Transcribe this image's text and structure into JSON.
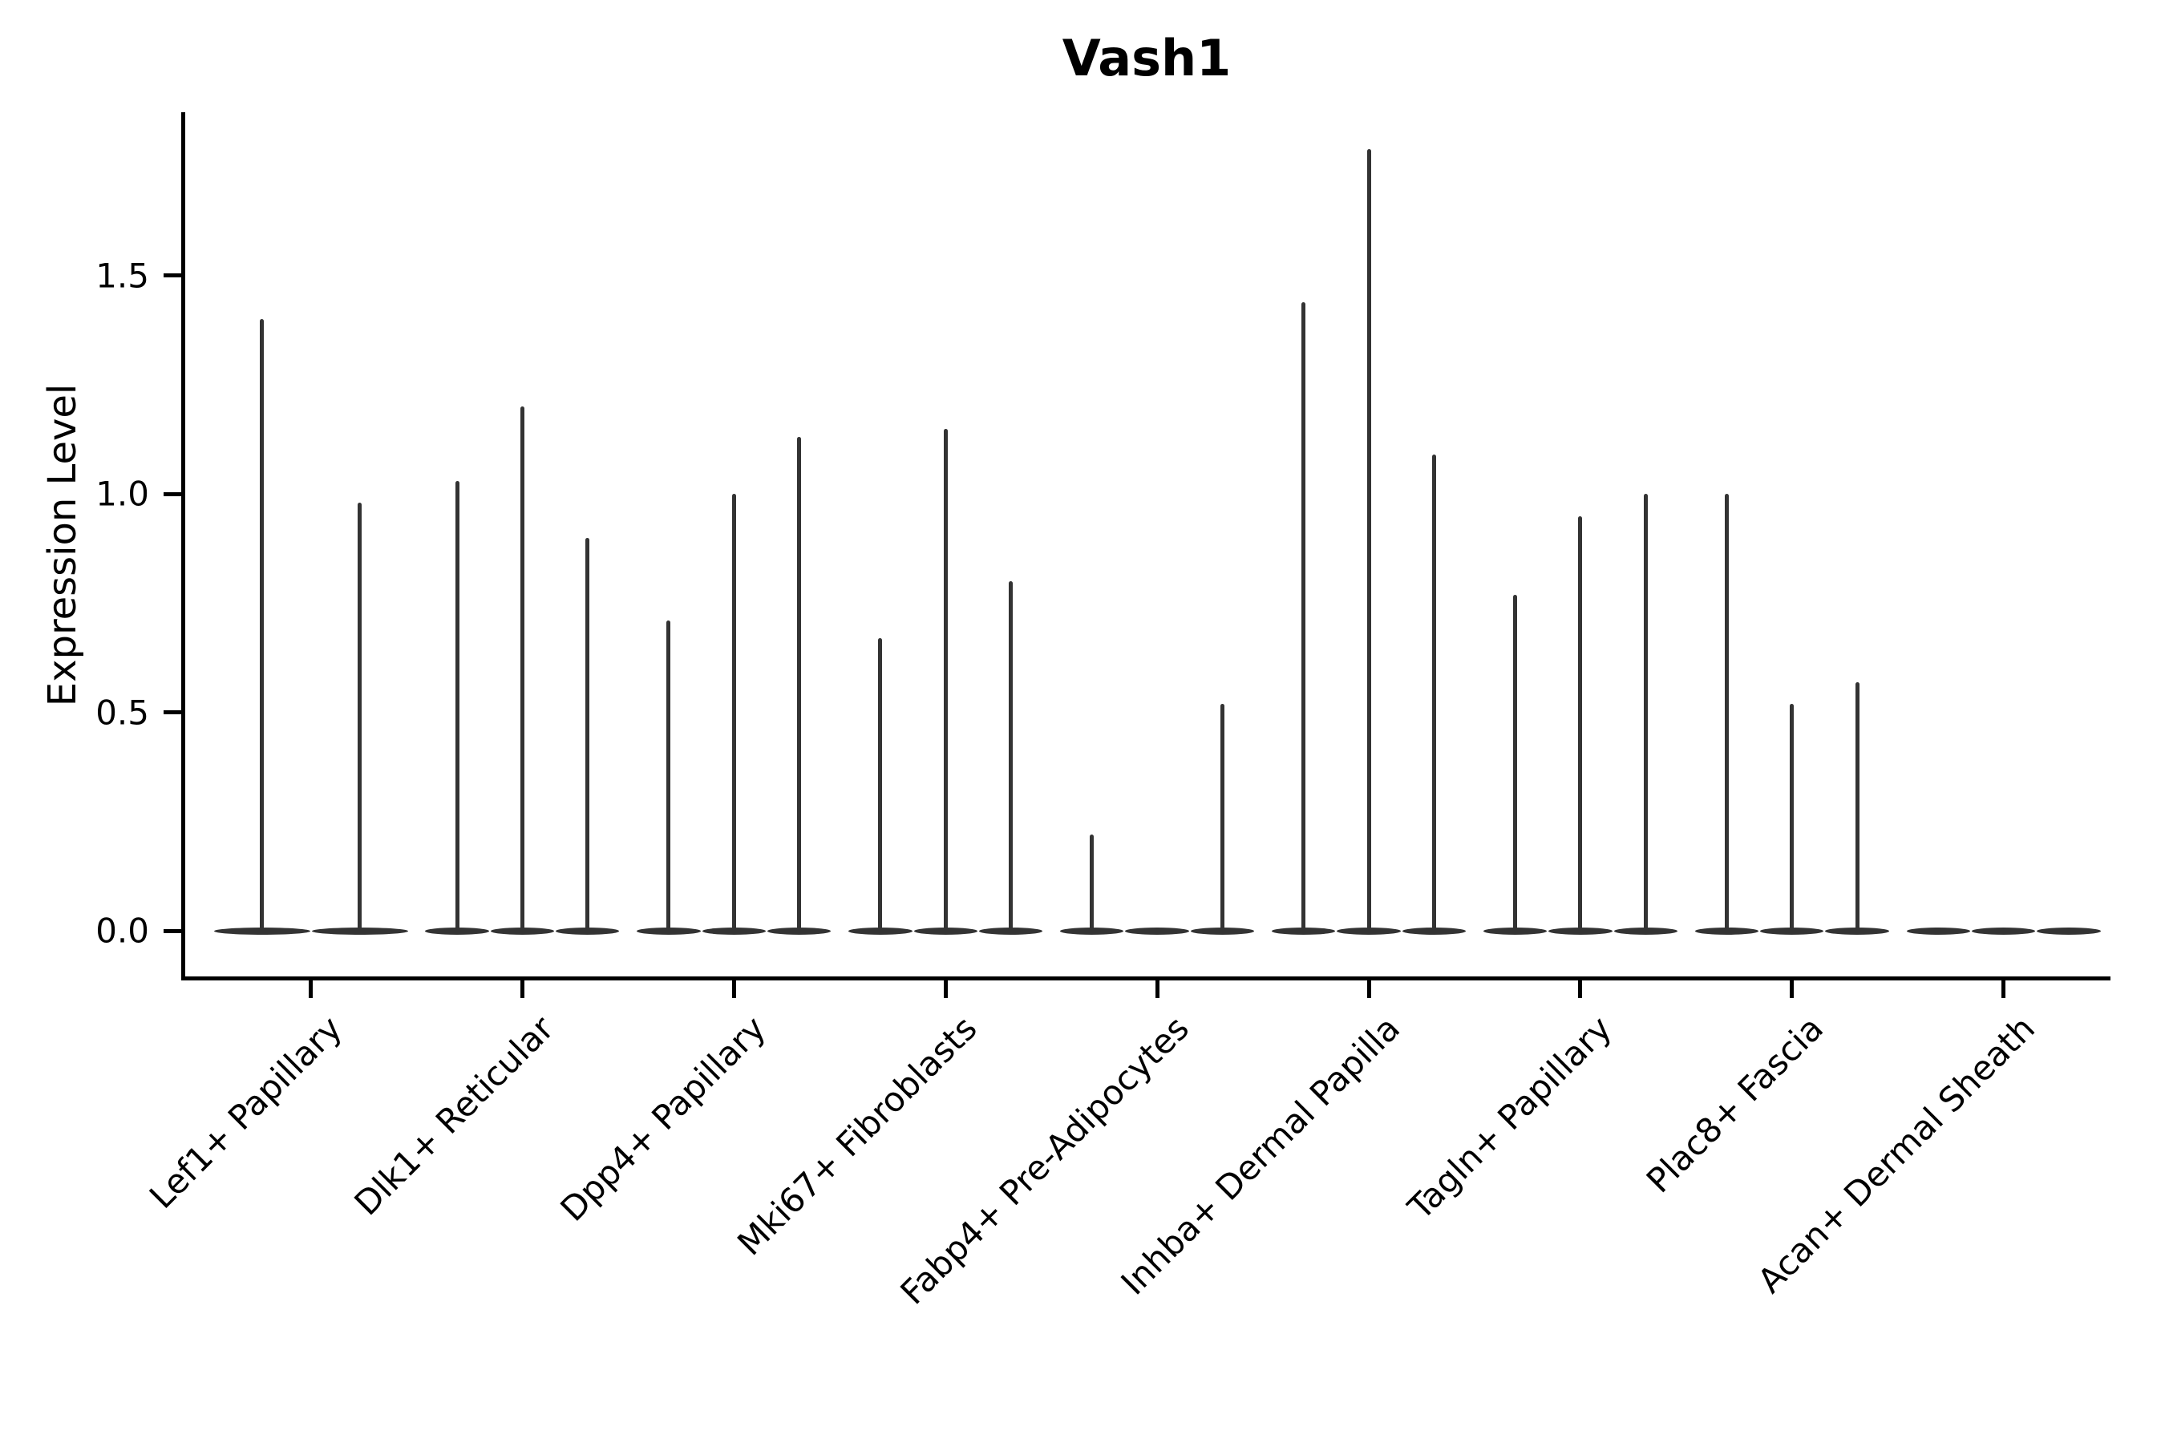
{
  "title": "Vash1",
  "y_axis": {
    "label": "Expression Level",
    "tick_labels": [
      "0.0",
      "0.5",
      "1.0",
      "1.5"
    ]
  },
  "colors": {
    "violin": "#333333",
    "axis": "#000000",
    "text": "#000000",
    "background": "#ffffff"
  },
  "chart_data": {
    "type": "violin",
    "title": "Vash1",
    "xlabel": "",
    "ylabel": "Expression Level",
    "ylim": [
      0,
      1.87
    ],
    "yticks": [
      0.0,
      0.5,
      1.0,
      1.5
    ],
    "ytick_labels": [
      "0.0",
      "0.5",
      "1.0",
      "1.5"
    ],
    "grid": false,
    "legend": "none",
    "violin_style": "collapsed-at-zero with needle spike to max expression",
    "groups": [
      {
        "label": "Lef1+ Papillary",
        "violin_max_expression": [
          1.4,
          0.98
        ]
      },
      {
        "label": "Dlk1+ Reticular",
        "violin_max_expression": [
          1.03,
          1.2,
          0.9
        ]
      },
      {
        "label": "Dpp4+ Papillary",
        "violin_max_expression": [
          0.71,
          1.0,
          1.13
        ]
      },
      {
        "label": "Mki67+ Fibroblasts",
        "violin_max_expression": [
          0.67,
          1.15,
          0.8
        ]
      },
      {
        "label": "Fabp4+ Pre-Adipocytes",
        "violin_max_expression": [
          0.22,
          0.0,
          0.52
        ]
      },
      {
        "label": "Inhba+ Dermal Papilla",
        "violin_max_expression": [
          1.44,
          1.79,
          1.09
        ]
      },
      {
        "label": "Tagln+ Papillary",
        "violin_max_expression": [
          0.77,
          0.95,
          1.0
        ]
      },
      {
        "label": "Plac8+ Fascia",
        "violin_max_expression": [
          1.0,
          0.52,
          0.57
        ]
      },
      {
        "label": "Acan+ Dermal Sheath",
        "violin_max_expression": [
          0.0,
          0.0,
          0.0
        ]
      }
    ]
  }
}
